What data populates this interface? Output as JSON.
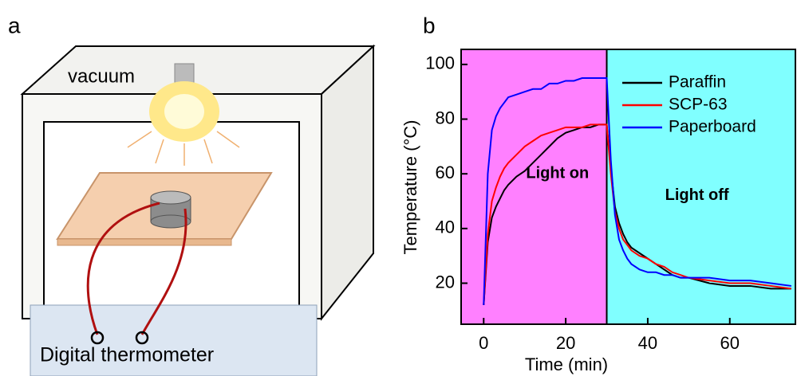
{
  "panel_a": {
    "label": "a",
    "vacuum_label": "vacuum",
    "thermometer_label": "Digital thermometer"
  },
  "chart_data": {
    "type": "line",
    "panel_label": "b",
    "x_label": "Time (min)",
    "y_label": "Temperature (°C)",
    "xlim": [
      -5.5,
      76
    ],
    "ylim": [
      5,
      105.5
    ],
    "xticks": [
      0,
      20,
      40,
      60
    ],
    "yticks": [
      20,
      40,
      60,
      80,
      100
    ],
    "switch_time": 30,
    "light_on": {
      "label": "Light on",
      "color": "#ff80ff"
    },
    "light_off": {
      "label": "Light off",
      "color": "#80ffff"
    },
    "legend": "upper right",
    "x": [
      0,
      1,
      2,
      3,
      4,
      5,
      6,
      8,
      10,
      12,
      14,
      16,
      18,
      20,
      22,
      24,
      26,
      28,
      30,
      31,
      32,
      33,
      34,
      35,
      36,
      38,
      40,
      42,
      44,
      46,
      48,
      50,
      55,
      60,
      65,
      70,
      75
    ],
    "series": [
      {
        "name": "Paraffin",
        "color": "#000000",
        "values": [
          12,
          35,
          44,
          48,
          51,
          54,
          56,
          59,
          61,
          64,
          67,
          70,
          73,
          75,
          76,
          77,
          77,
          78,
          78,
          62,
          48,
          42,
          38,
          35,
          33,
          31,
          29,
          27,
          25,
          23,
          22,
          22,
          20,
          19,
          19,
          18,
          18
        ]
      },
      {
        "name": "SCP-63",
        "color": "#ff0000",
        "values": [
          12,
          38,
          50,
          55,
          59,
          62,
          64,
          67,
          70,
          72,
          74,
          75,
          76,
          77,
          77,
          77,
          78,
          78,
          78,
          60,
          46,
          40,
          36,
          34,
          32,
          30,
          29,
          27,
          26,
          24,
          23,
          22,
          21,
          20,
          20,
          19,
          18
        ]
      },
      {
        "name": "Paperboard",
        "color": "#0000ff",
        "values": [
          12,
          60,
          76,
          81,
          84,
          86,
          88,
          89,
          90,
          91,
          91,
          93,
          93,
          94,
          94,
          95,
          95,
          95,
          95,
          65,
          45,
          36,
          32,
          29,
          27,
          25,
          24,
          24,
          23,
          23,
          22,
          22,
          22,
          21,
          21,
          20,
          19
        ]
      }
    ]
  }
}
